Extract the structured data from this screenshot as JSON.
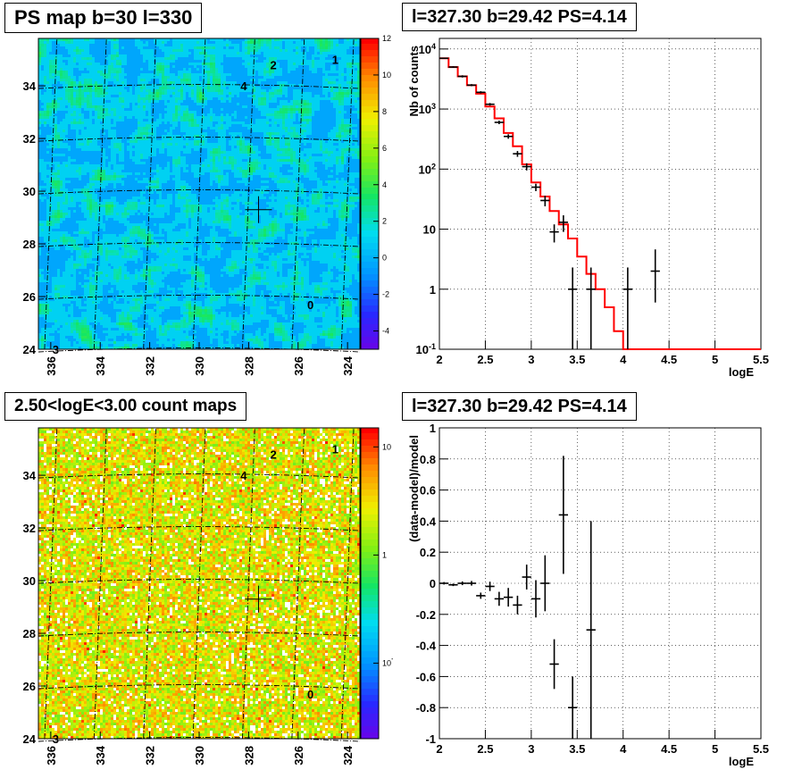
{
  "titles": {
    "ps_map": "PS map b=30 l=330",
    "spectrum": "l=327.30 b=29.42 PS=4.14",
    "count_map": "2.50<logE<3.00 count maps",
    "residual": "l=327.30 b=29.42 PS=4.14"
  },
  "colors": {
    "data": "#000000",
    "model": "#ff0000",
    "grid": "#000000"
  },
  "chart_data": [
    {
      "id": "ps_map",
      "type": "heatmap",
      "title": "PS map b=30 l=330",
      "xlim": [
        336.5,
        323.5
      ],
      "ylim": [
        24,
        35.8
      ],
      "x_ticks": [
        "336",
        "334",
        "332",
        "330",
        "328",
        "326",
        "324"
      ],
      "y_ticks": [
        "24",
        "26",
        "28",
        "30",
        "32",
        "34"
      ],
      "colorbar": {
        "min": -5,
        "max": 12,
        "ticks": [
          "12",
          "10",
          "8",
          "6",
          "4",
          "2",
          "0",
          "-2",
          "-4"
        ]
      },
      "annotations": [
        {
          "text": "1",
          "l": 324.5,
          "b": 35.0
        },
        {
          "text": "2",
          "l": 327.0,
          "b": 34.8
        },
        {
          "text": "4",
          "l": 328.2,
          "b": 34.0
        },
        {
          "text": "0",
          "l": 325.5,
          "b": 25.7
        },
        {
          "text": "3",
          "l": 335.8,
          "b": 24.0
        }
      ],
      "marker": {
        "l": 327.6,
        "b": 29.3
      }
    },
    {
      "id": "spectrum",
      "type": "line",
      "title": "l=327.30 b=29.42 PS=4.14",
      "xlabel": "logE",
      "ylabel": "Nb of counts",
      "yscale": "log",
      "xlim": [
        2,
        5.5
      ],
      "ylim": [
        0.1,
        15000
      ],
      "x_ticks": [
        "2",
        "2.5",
        "3",
        "3.5",
        "4",
        "4.5",
        "5",
        "5.5"
      ],
      "y_ticks": [
        "10^-1",
        "1",
        "10",
        "10^2",
        "10^3",
        "10^4"
      ],
      "series": [
        {
          "name": "",
          "kind": "step",
          "x_edges": [
            2.0,
            2.1,
            2.2,
            2.3,
            2.4,
            2.5,
            2.6,
            2.7,
            2.8,
            2.9,
            3.0,
            3.1,
            3.2,
            3.3,
            3.4,
            3.5,
            3.6,
            3.7,
            3.8,
            3.9,
            4.0,
            5.5
          ],
          "values": [
            7000,
            5000,
            3500,
            2500,
            1800,
            1100,
            700,
            400,
            240,
            120,
            60,
            35,
            20,
            12,
            7,
            3.5,
            1.8,
            1.0,
            0.5,
            0.2,
            0.1
          ]
        },
        {
          "name": "",
          "kind": "errorbar",
          "x": [
            2.05,
            2.15,
            2.25,
            2.35,
            2.45,
            2.55,
            2.65,
            2.75,
            2.85,
            2.95,
            3.05,
            3.15,
            3.25,
            3.35,
            3.45,
            3.65,
            4.05,
            4.35
          ],
          "y": [
            7000,
            5000,
            3500,
            2500,
            1900,
            1200,
            600,
            350,
            180,
            110,
            50,
            30,
            9,
            13,
            1,
            1,
            1,
            2
          ],
          "y_low": [
            6850,
            4850,
            3350,
            2400,
            1820,
            1140,
            560,
            320,
            160,
            95,
            43,
            24,
            6,
            9,
            0.1,
            0.1,
            0.1,
            0.6
          ],
          "y_high": [
            7150,
            5150,
            3650,
            2600,
            1980,
            1260,
            640,
            380,
            200,
            125,
            57,
            36,
            12,
            17,
            2.3,
            2.3,
            2.3,
            4.6
          ],
          "x_half_width": 0.05
        }
      ]
    },
    {
      "id": "count_map",
      "type": "heatmap",
      "title": "2.50<logE<3.00 count maps",
      "xlim": [
        336.5,
        323.5
      ],
      "ylim": [
        24,
        35.8
      ],
      "x_ticks": [
        "336",
        "334",
        "332",
        "330",
        "328",
        "326",
        "324"
      ],
      "y_ticks": [
        "24",
        "26",
        "28",
        "30",
        "32",
        "34"
      ],
      "colorbar": {
        "scale": "log",
        "min": 0.02,
        "max": 15,
        "ticks": [
          "10",
          "1",
          "10^-1"
        ]
      },
      "annotations": [
        {
          "text": "1",
          "l": 324.5,
          "b": 35.0
        },
        {
          "text": "2",
          "l": 327.0,
          "b": 34.8
        },
        {
          "text": "4",
          "l": 328.2,
          "b": 34.0
        },
        {
          "text": "0",
          "l": 325.5,
          "b": 25.7
        },
        {
          "text": "3",
          "l": 335.8,
          "b": 24.0
        }
      ],
      "marker": {
        "l": 327.6,
        "b": 29.3
      }
    },
    {
      "id": "residual",
      "type": "scatter",
      "title": "l=327.30 b=29.42 PS=4.14",
      "xlabel": "logE",
      "ylabel": "(data-model)/model",
      "xlim": [
        2,
        5.5
      ],
      "ylim": [
        -1,
        1
      ],
      "x_ticks": [
        "2",
        "2.5",
        "3",
        "3.5",
        "4",
        "4.5",
        "5",
        "5.5"
      ],
      "y_ticks": [
        "-1",
        "-0.8",
        "-0.6",
        "-0.4",
        "-0.2",
        "0",
        "0.2",
        "0.4",
        "0.6",
        "0.8",
        "1"
      ],
      "series": [
        {
          "name": "",
          "kind": "errorbar",
          "x": [
            2.05,
            2.15,
            2.25,
            2.35,
            2.45,
            2.55,
            2.65,
            2.75,
            2.85,
            2.95,
            3.05,
            3.15,
            3.25,
            3.35,
            3.45,
            3.65
          ],
          "y": [
            0.0,
            -0.01,
            0.0,
            0.0,
            -0.08,
            -0.02,
            -0.1,
            -0.09,
            -0.14,
            0.04,
            -0.1,
            0.0,
            -0.52,
            0.44,
            -0.8,
            -0.3
          ],
          "err": [
            0.008,
            0.008,
            0.012,
            0.015,
            0.02,
            0.03,
            0.045,
            0.06,
            0.06,
            0.08,
            0.12,
            0.18,
            0.16,
            0.38,
            0.2,
            0.7
          ],
          "x_half_width": 0.05
        }
      ]
    }
  ]
}
